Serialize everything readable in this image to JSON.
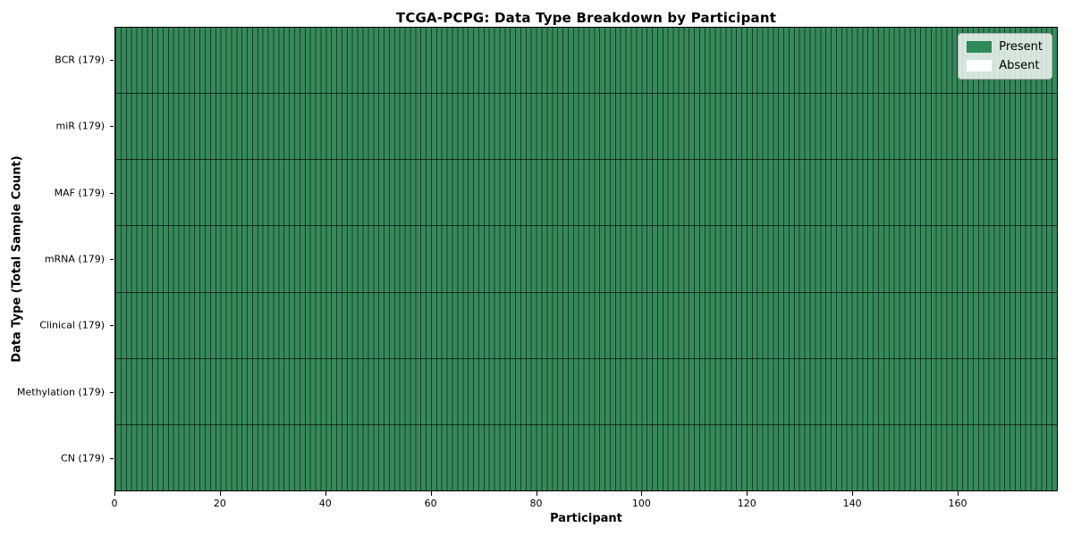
{
  "chart_data": {
    "type": "heatmap",
    "title": "TCGA-PCPG: Data Type Breakdown by Participant",
    "xlabel": "Participant",
    "ylabel": "Data Type (Total Sample Count)",
    "xlim": [
      0,
      179
    ],
    "x_ticks": [
      0,
      20,
      40,
      60,
      80,
      100,
      120,
      140,
      160
    ],
    "n_participants": 179,
    "rows": [
      {
        "label": "BCR (179)",
        "present_count": 179,
        "absent_count": 0
      },
      {
        "label": "miR (179)",
        "present_count": 179,
        "absent_count": 0
      },
      {
        "label": "MAF (179)",
        "present_count": 179,
        "absent_count": 0
      },
      {
        "label": "mRNA (179)",
        "present_count": 179,
        "absent_count": 0
      },
      {
        "label": "Clinical (179)",
        "present_count": 179,
        "absent_count": 0
      },
      {
        "label": "Methylation (179)",
        "present_count": 179,
        "absent_count": 0
      },
      {
        "label": "CN (179)",
        "present_count": 179,
        "absent_count": 0
      }
    ],
    "all_cells": "present",
    "legend": [
      {
        "label": "Present",
        "color": "#2e8b57"
      },
      {
        "label": "Absent",
        "color": "#ffffff"
      }
    ],
    "legend_position": "upper right",
    "cell_present_color": "#36895b",
    "cell_border_color": "rgba(0,0,0,0.55)",
    "row_separator_color": "rgba(0,0,0,0.65)",
    "grid": "per-cell borders"
  }
}
